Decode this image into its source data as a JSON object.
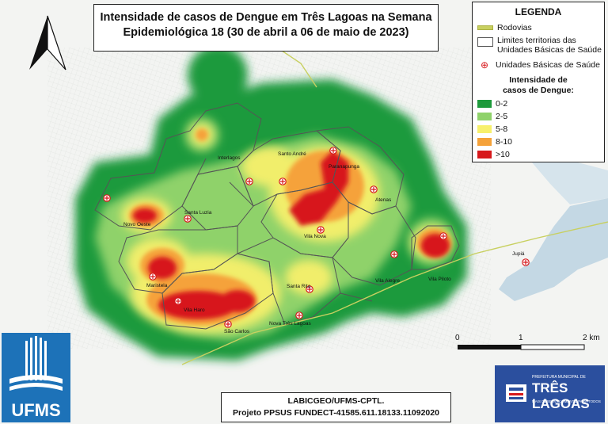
{
  "title": {
    "line1": "Intensidade de casos de Dengue em Três Lagoas na Semana",
    "line2": "Epidemiológica 18 (30 de abril a 06 de maio de 2023)"
  },
  "legend": {
    "title": "LEGENDA",
    "roads": "Rodovias",
    "limits_line1": "Limites territorias das",
    "limits_line2": "Unidades Básicas de Saúde",
    "ubs": "Unidades Básicas de Saúde",
    "intensity_title_line1": "Intensidade de",
    "intensity_title_line2": "casos de Dengue:",
    "classes": [
      {
        "label": "0-2",
        "color": "#1e9a3c"
      },
      {
        "label": "2-5",
        "color": "#8fd26a"
      },
      {
        "label": "5-8",
        "color": "#f7f06c"
      },
      {
        "label": "8-10",
        "color": "#f5a23a"
      },
      {
        "label": ">10",
        "color": "#d7191c"
      }
    ]
  },
  "map_labels": {
    "interlagos": "Interlagos",
    "santo_andre": "Santo André",
    "paranapunga": "Paranapunga",
    "atenas": "Atenas",
    "santa_luzia": "Santa Luzia",
    "novo_oeste": "Novo Oeste",
    "vila_nova": "Vila Nova",
    "maristela": "Maristela",
    "santa_rita": "Santa Rita",
    "vila_haro": "Vila Haro",
    "sao_carlos": "São Carlos",
    "nova_tres_lagoas": "Nova Três Lagoas",
    "vila_alegre": "Vila Alegre",
    "vila_piloto": "Vila Piloto",
    "jupia": "Jupiá"
  },
  "scale": {
    "t0": "0",
    "t1": "1",
    "t2": "2 km"
  },
  "footer": {
    "line1": "LABICGEO/UFMS-CPTL.",
    "line2": "Projeto PPSUS FUNDECT-41585.611.18133.11092020"
  },
  "logos": {
    "ufms": "UFMS",
    "prefeitura_top": "PREFEITURA MUNICIPAL DE",
    "prefeitura_main": "TRÊS LAGOAS",
    "prefeitura_sub": "MAIS DESENVOLVIMENTO PARA TODOS"
  },
  "colors": {
    "river": "#c4d8e4",
    "road": "#c8d060",
    "limit": "#555555",
    "ubs": "#d7191c"
  }
}
